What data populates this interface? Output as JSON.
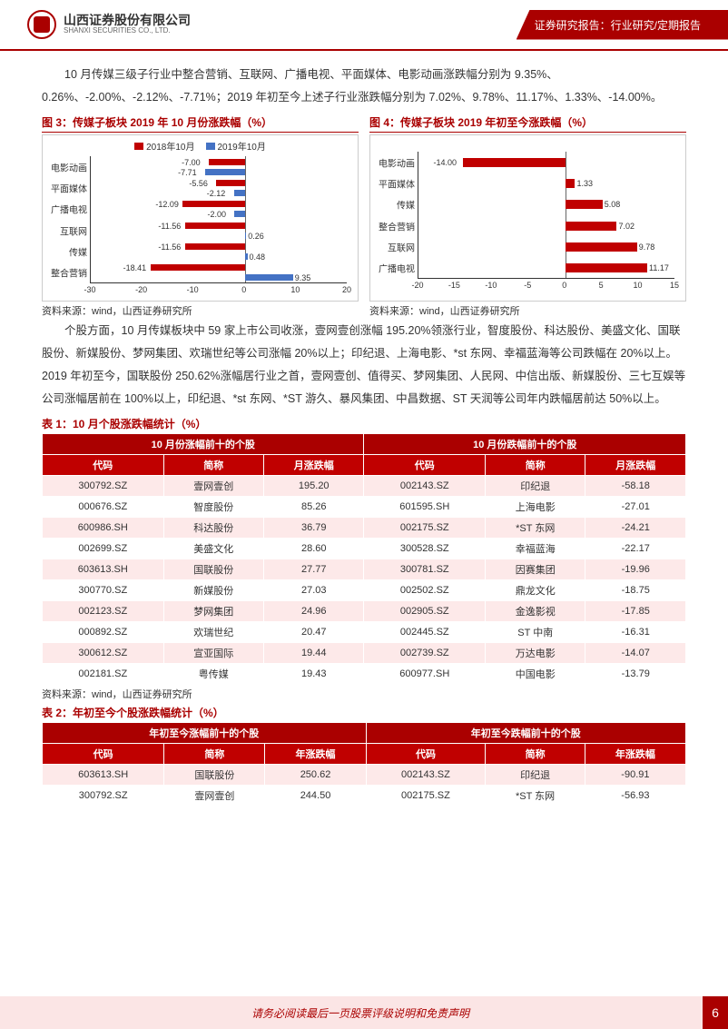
{
  "header": {
    "company_cn": "山西证券股份有限公司",
    "company_en": "SHANXI SECURITIES CO., LTD.",
    "report_type": "证券研究报告：行业研究/定期报告"
  },
  "para1": "10 月传媒三级子行业中整合营销、互联网、广播电视、平面媒体、电影动画涨跌幅分别为 9.35%、0.26%、-2.00%、-2.12%、-7.71%；2019 年初至今上述子行业涨跌幅分别为 7.02%、9.78%、11.17%、1.33%、-14.00%。",
  "chart3": {
    "title": "图 3：传媒子板块 2019 年 10 月份涨跌幅（%）",
    "legend": [
      {
        "label": "2018年10月",
        "color": "#c00000"
      },
      {
        "label": "2019年10月",
        "color": "#4472c4"
      }
    ],
    "xmin": -30,
    "xmax": 20,
    "xticks": [
      -30,
      -20,
      -10,
      0,
      10,
      20
    ],
    "categories": [
      "电影动画",
      "平面媒体",
      "广播电视",
      "互联网",
      "传媒",
      "整合营销"
    ],
    "s2018": [
      -7.0,
      -5.56,
      -12.09,
      -11.56,
      -11.56,
      -18.41
    ],
    "s2019": [
      -7.71,
      -2.12,
      -2.0,
      0.26,
      0.48,
      9.35
    ],
    "source": "资料来源：wind，山西证券研究所"
  },
  "chart4": {
    "title": "图 4：传媒子板块 2019 年初至今涨跌幅（%）",
    "xmin": -20,
    "xmax": 15,
    "xticks": [
      -20,
      -15,
      -10,
      -5,
      0,
      5,
      10,
      15
    ],
    "categories": [
      "电影动画",
      "平面媒体",
      "传媒",
      "整合营销",
      "互联网",
      "广播电视"
    ],
    "values": [
      -14.0,
      1.33,
      5.08,
      7.02,
      9.78,
      11.17
    ],
    "color": "#c00000",
    "source": "资料来源：wind，山西证券研究所"
  },
  "para2": "个股方面，10 月传媒板块中 59 家上市公司收涨，壹网壹创涨幅 195.20%领涨行业，智度股份、科达股份、美盛文化、国联股份、新媒股份、梦网集团、欢瑞世纪等公司涨幅 20%以上；印纪退、上海电影、*st 东网、幸福蓝海等公司跌幅在 20%以上。2019 年初至今，国联股份 250.62%涨幅居行业之首，壹网壹创、值得买、梦网集团、人民网、中信出版、新媒股份、三七互娱等公司涨幅居前在 100%以上，印纪退、*st 东网、*ST 游久、暴风集团、中昌数据、ST 天润等公司年内跌幅居前达 50%以上。",
  "table1": {
    "title": "表 1：10 月个股涨跌幅统计（%）",
    "group_up": "10 月份涨幅前十的个股",
    "group_down": "10 月份跌幅前十的个股",
    "cols": [
      "代码",
      "简称",
      "月涨跌幅",
      "代码",
      "简称",
      "月涨跌幅"
    ],
    "rows": [
      [
        "300792.SZ",
        "壹网壹创",
        "195.20",
        "002143.SZ",
        "印纪退",
        "-58.18"
      ],
      [
        "000676.SZ",
        "智度股份",
        "85.26",
        "601595.SH",
        "上海电影",
        "-27.01"
      ],
      [
        "600986.SH",
        "科达股份",
        "36.79",
        "002175.SZ",
        "*ST 东网",
        "-24.21"
      ],
      [
        "002699.SZ",
        "美盛文化",
        "28.60",
        "300528.SZ",
        "幸福蓝海",
        "-22.17"
      ],
      [
        "603613.SH",
        "国联股份",
        "27.77",
        "300781.SZ",
        "因赛集团",
        "-19.96"
      ],
      [
        "300770.SZ",
        "新媒股份",
        "27.03",
        "002502.SZ",
        "鼎龙文化",
        "-18.75"
      ],
      [
        "002123.SZ",
        "梦网集团",
        "24.96",
        "002905.SZ",
        "金逸影视",
        "-17.85"
      ],
      [
        "000892.SZ",
        "欢瑞世纪",
        "20.47",
        "002445.SZ",
        "ST 中南",
        "-16.31"
      ],
      [
        "300612.SZ",
        "宣亚国际",
        "19.44",
        "002739.SZ",
        "万达电影",
        "-14.07"
      ],
      [
        "002181.SZ",
        "粤传媒",
        "19.43",
        "600977.SH",
        "中国电影",
        "-13.79"
      ]
    ],
    "source": "资料来源：wind，山西证券研究所"
  },
  "table2": {
    "title": "表 2：年初至今个股涨跌幅统计（%）",
    "group_up": "年初至今涨幅前十的个股",
    "group_down": "年初至今跌幅前十的个股",
    "cols": [
      "代码",
      "简称",
      "年涨跌幅",
      "代码",
      "简称",
      "年涨跌幅"
    ],
    "rows": [
      [
        "603613.SH",
        "国联股份",
        "250.62",
        "002143.SZ",
        "印纪退",
        "-90.91"
      ],
      [
        "300792.SZ",
        "壹网壹创",
        "244.50",
        "002175.SZ",
        "*ST 东网",
        "-56.93"
      ]
    ]
  },
  "footer": {
    "text": "请务必阅读最后一页股票评级说明和免责声明",
    "page": "6"
  }
}
